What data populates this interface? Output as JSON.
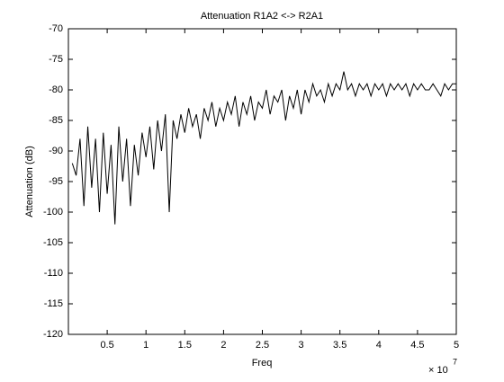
{
  "chart_data": {
    "type": "line",
    "title": "Attenuation R1A2 <-> R2A1",
    "x_label": "Freq",
    "y_label": "Attenuation (dB)",
    "x_multiplier": "× 10",
    "x_multiplier_exponent": "7",
    "x": [
      0.05,
      0.1,
      0.15,
      0.2,
      0.25,
      0.3,
      0.35,
      0.4,
      0.45,
      0.5,
      0.55,
      0.6,
      0.65,
      0.7,
      0.75,
      0.8,
      0.85,
      0.9,
      0.95,
      1.0,
      1.05,
      1.1,
      1.15,
      1.2,
      1.25,
      1.3,
      1.35,
      1.4,
      1.45,
      1.5,
      1.55,
      1.6,
      1.65,
      1.7,
      1.75,
      1.8,
      1.85,
      1.9,
      1.95,
      2.0,
      2.05,
      2.1,
      2.15,
      2.2,
      2.25,
      2.3,
      2.35,
      2.4,
      2.45,
      2.5,
      2.55,
      2.6,
      2.65,
      2.7,
      2.75,
      2.8,
      2.85,
      2.9,
      2.95,
      3.0,
      3.05,
      3.1,
      3.15,
      3.2,
      3.25,
      3.3,
      3.35,
      3.4,
      3.45,
      3.5,
      3.55,
      3.6,
      3.65,
      3.7,
      3.75,
      3.8,
      3.85,
      3.9,
      3.95,
      4.0,
      4.05,
      4.1,
      4.15,
      4.2,
      4.25,
      4.3,
      4.35,
      4.4,
      4.45,
      4.5,
      4.55,
      4.6,
      4.65,
      4.7,
      4.75,
      4.8,
      4.85,
      4.9,
      4.95,
      5.0
    ],
    "series": [
      {
        "color": "#000000",
        "values": [
          -92,
          -94,
          -88,
          -99,
          -86,
          -96,
          -88,
          -100,
          -87,
          -97,
          -89,
          -102,
          -86,
          -95,
          -88,
          -99,
          -89,
          -94,
          -87,
          -91,
          -86,
          -93,
          -85,
          -90,
          -84,
          -100,
          -85,
          -88,
          -84,
          -87,
          -83,
          -86,
          -84,
          -88,
          -83,
          -85,
          -82,
          -86,
          -83,
          -85,
          -82,
          -84,
          -81,
          -86,
          -82,
          -84,
          -81,
          -85,
          -82,
          -83,
          -80,
          -84,
          -81,
          -82,
          -80,
          -85,
          -81,
          -83,
          -80,
          -84,
          -80,
          -82,
          -79,
          -81,
          -80,
          -82,
          -79,
          -81,
          -79,
          -80,
          -77,
          -80,
          -79,
          -81,
          -79,
          -80,
          -79,
          -81,
          -79,
          -80,
          -79,
          -81,
          -79,
          -80,
          -79,
          -80,
          -79,
          -81,
          -79,
          -80,
          -79,
          -80,
          -80,
          -79,
          -80,
          -81,
          -79,
          -80,
          -79,
          -79
        ]
      }
    ],
    "xlim": [
      0,
      5
    ],
    "xticks": [
      0.5,
      1,
      1.5,
      2,
      2.5,
      3,
      3.5,
      4,
      4.5,
      5
    ],
    "ylim": [
      -120,
      -70
    ],
    "yticks": [
      -120,
      -115,
      -110,
      -105,
      -100,
      -95,
      -90,
      -85,
      -80,
      -75,
      -70
    ]
  }
}
